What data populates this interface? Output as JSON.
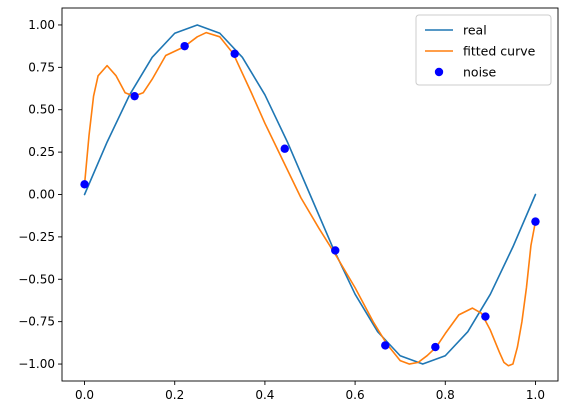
{
  "colors": {
    "real": "#1f77b4",
    "fitted": "#ff7f0e",
    "noise": "#0000ff",
    "axes": "#000000",
    "background": "#ffffff",
    "legend_border": "#cccccc"
  },
  "chart_data": {
    "type": "line",
    "title": "",
    "xlabel": "",
    "ylabel": "",
    "xlim": [
      -0.05,
      1.05
    ],
    "ylim": [
      -1.1,
      1.1
    ],
    "grid": false,
    "legend_position": "top-right",
    "x_ticks": [
      0.0,
      0.2,
      0.4,
      0.6,
      0.8,
      1.0
    ],
    "x_tick_labels": [
      "0.0",
      "0.2",
      "0.4",
      "0.6",
      "0.8",
      "1.0"
    ],
    "y_ticks": [
      1.0,
      0.75,
      0.5,
      0.25,
      0.0,
      -0.25,
      -0.5,
      -0.75,
      -1.0
    ],
    "y_tick_labels": [
      "1.00",
      "0.75",
      "0.50",
      "0.25",
      "0.00",
      "−0.25",
      "−0.50",
      "−0.75",
      "−1.00"
    ],
    "series": [
      {
        "name": "real",
        "kind": "line",
        "color": "#1f77b4",
        "x": [
          0.0,
          0.05,
          0.1,
          0.15,
          0.2,
          0.25,
          0.3,
          0.35,
          0.4,
          0.45,
          0.5,
          0.55,
          0.6,
          0.65,
          0.7,
          0.75,
          0.8,
          0.85,
          0.9,
          0.95,
          1.0
        ],
        "y": [
          0.0,
          0.309,
          0.588,
          0.809,
          0.951,
          1.0,
          0.951,
          0.809,
          0.588,
          0.309,
          0.0,
          -0.309,
          -0.588,
          -0.809,
          -0.951,
          -1.0,
          -0.951,
          -0.809,
          -0.588,
          -0.309,
          0.0
        ]
      },
      {
        "name": "fitted curve",
        "kind": "line",
        "color": "#ff7f0e",
        "x": [
          0.0,
          0.01,
          0.02,
          0.03,
          0.05,
          0.07,
          0.09,
          0.11,
          0.13,
          0.15,
          0.18,
          0.22,
          0.25,
          0.27,
          0.3,
          0.33,
          0.37,
          0.4,
          0.44,
          0.48,
          0.52,
          0.56,
          0.6,
          0.64,
          0.67,
          0.7,
          0.72,
          0.74,
          0.76,
          0.78,
          0.8,
          0.83,
          0.86,
          0.88,
          0.9,
          0.92,
          0.93,
          0.94,
          0.95,
          0.96,
          0.97,
          0.98,
          0.99,
          1.0
        ],
        "y": [
          0.06,
          0.35,
          0.58,
          0.7,
          0.76,
          0.7,
          0.6,
          0.58,
          0.6,
          0.68,
          0.82,
          0.87,
          0.93,
          0.955,
          0.93,
          0.83,
          0.6,
          0.42,
          0.2,
          -0.02,
          -0.2,
          -0.37,
          -0.55,
          -0.75,
          -0.88,
          -0.98,
          -1.0,
          -0.99,
          -0.95,
          -0.9,
          -0.82,
          -0.71,
          -0.67,
          -0.7,
          -0.8,
          -0.93,
          -0.99,
          -1.01,
          -1.0,
          -0.9,
          -0.75,
          -0.55,
          -0.3,
          -0.16
        ]
      },
      {
        "name": "noise",
        "kind": "scatter",
        "color": "#0000ff",
        "x": [
          0.0,
          0.111,
          0.222,
          0.333,
          0.444,
          0.556,
          0.667,
          0.778,
          0.889,
          1.0
        ],
        "y": [
          0.06,
          0.58,
          0.875,
          0.83,
          0.27,
          -0.33,
          -0.89,
          -0.9,
          -0.72,
          -0.16
        ]
      }
    ]
  }
}
